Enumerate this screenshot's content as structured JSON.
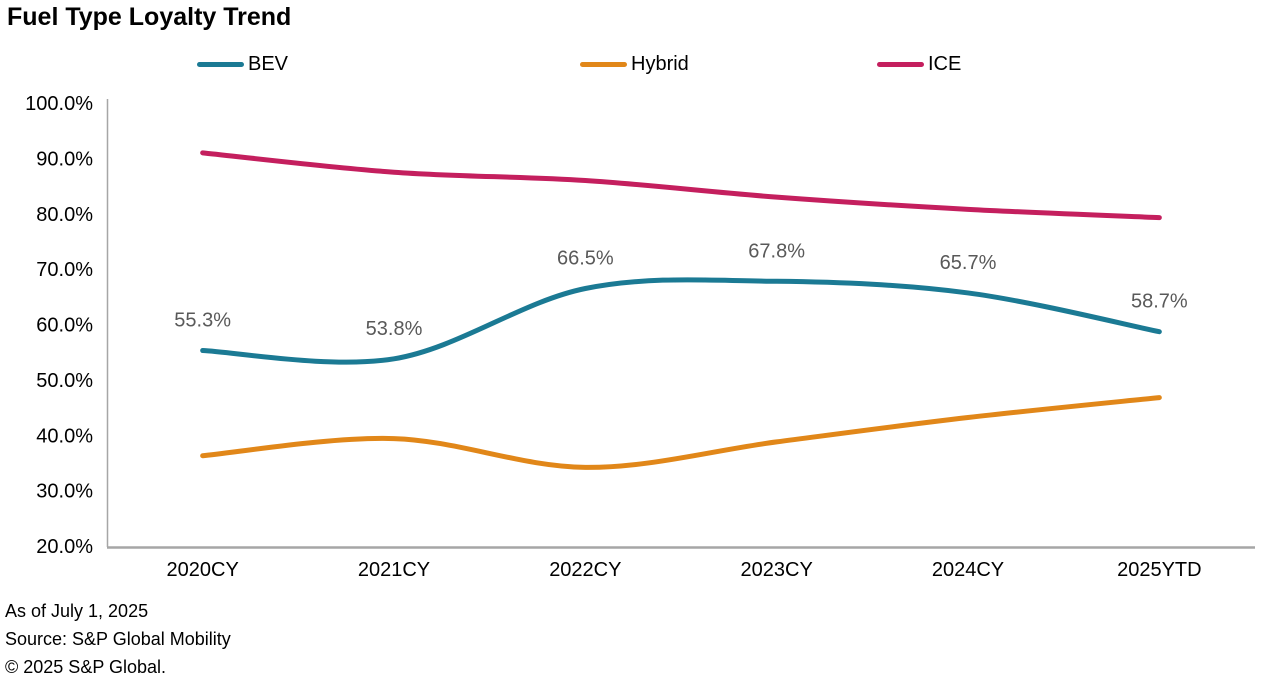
{
  "header": {
    "title": "Fuel Type Loyalty Trend"
  },
  "chart_data": {
    "type": "line",
    "title": "Fuel Type Loyalty Trend",
    "smooth": true,
    "grid": false,
    "legend_position": "top",
    "categories": [
      "2020CY",
      "2021CY",
      "2022CY",
      "2023CY",
      "2024CY",
      "2025YTD"
    ],
    "series": [
      {
        "name": "BEV",
        "color": "#1B7A94",
        "values": [
          55.3,
          53.8,
          66.5,
          67.8,
          65.7,
          58.7
        ],
        "data_labels": [
          "55.3%",
          "53.8%",
          "66.5%",
          "67.8%",
          "65.7%",
          "58.7%"
        ]
      },
      {
        "name": "Hybrid",
        "color": "#E18719",
        "values": [
          36.3,
          39.4,
          34.2,
          38.8,
          43.2,
          46.8
        ],
        "data_labels": null
      },
      {
        "name": "ICE",
        "color": "#C41F5E",
        "values": [
          91.0,
          87.5,
          86.0,
          83.0,
          80.8,
          79.3
        ],
        "data_labels": null
      }
    ],
    "xlabel": "",
    "ylabel": "",
    "ylim": [
      20,
      100
    ],
    "y_tick_step": 10,
    "y_tick_labels": [
      "20.0%",
      "30.0%",
      "40.0%",
      "50.0%",
      "60.0%",
      "70.0%",
      "80.0%",
      "90.0%",
      "100.0%"
    ],
    "data_label_color": "#595959",
    "axis_color": "#A6A6A6",
    "tick_label_color": "#000000"
  },
  "footer": {
    "lines": [
      "As of July 1, 2025",
      "Source: S&P Global Mobility",
      "© 2025 S&P Global."
    ]
  }
}
